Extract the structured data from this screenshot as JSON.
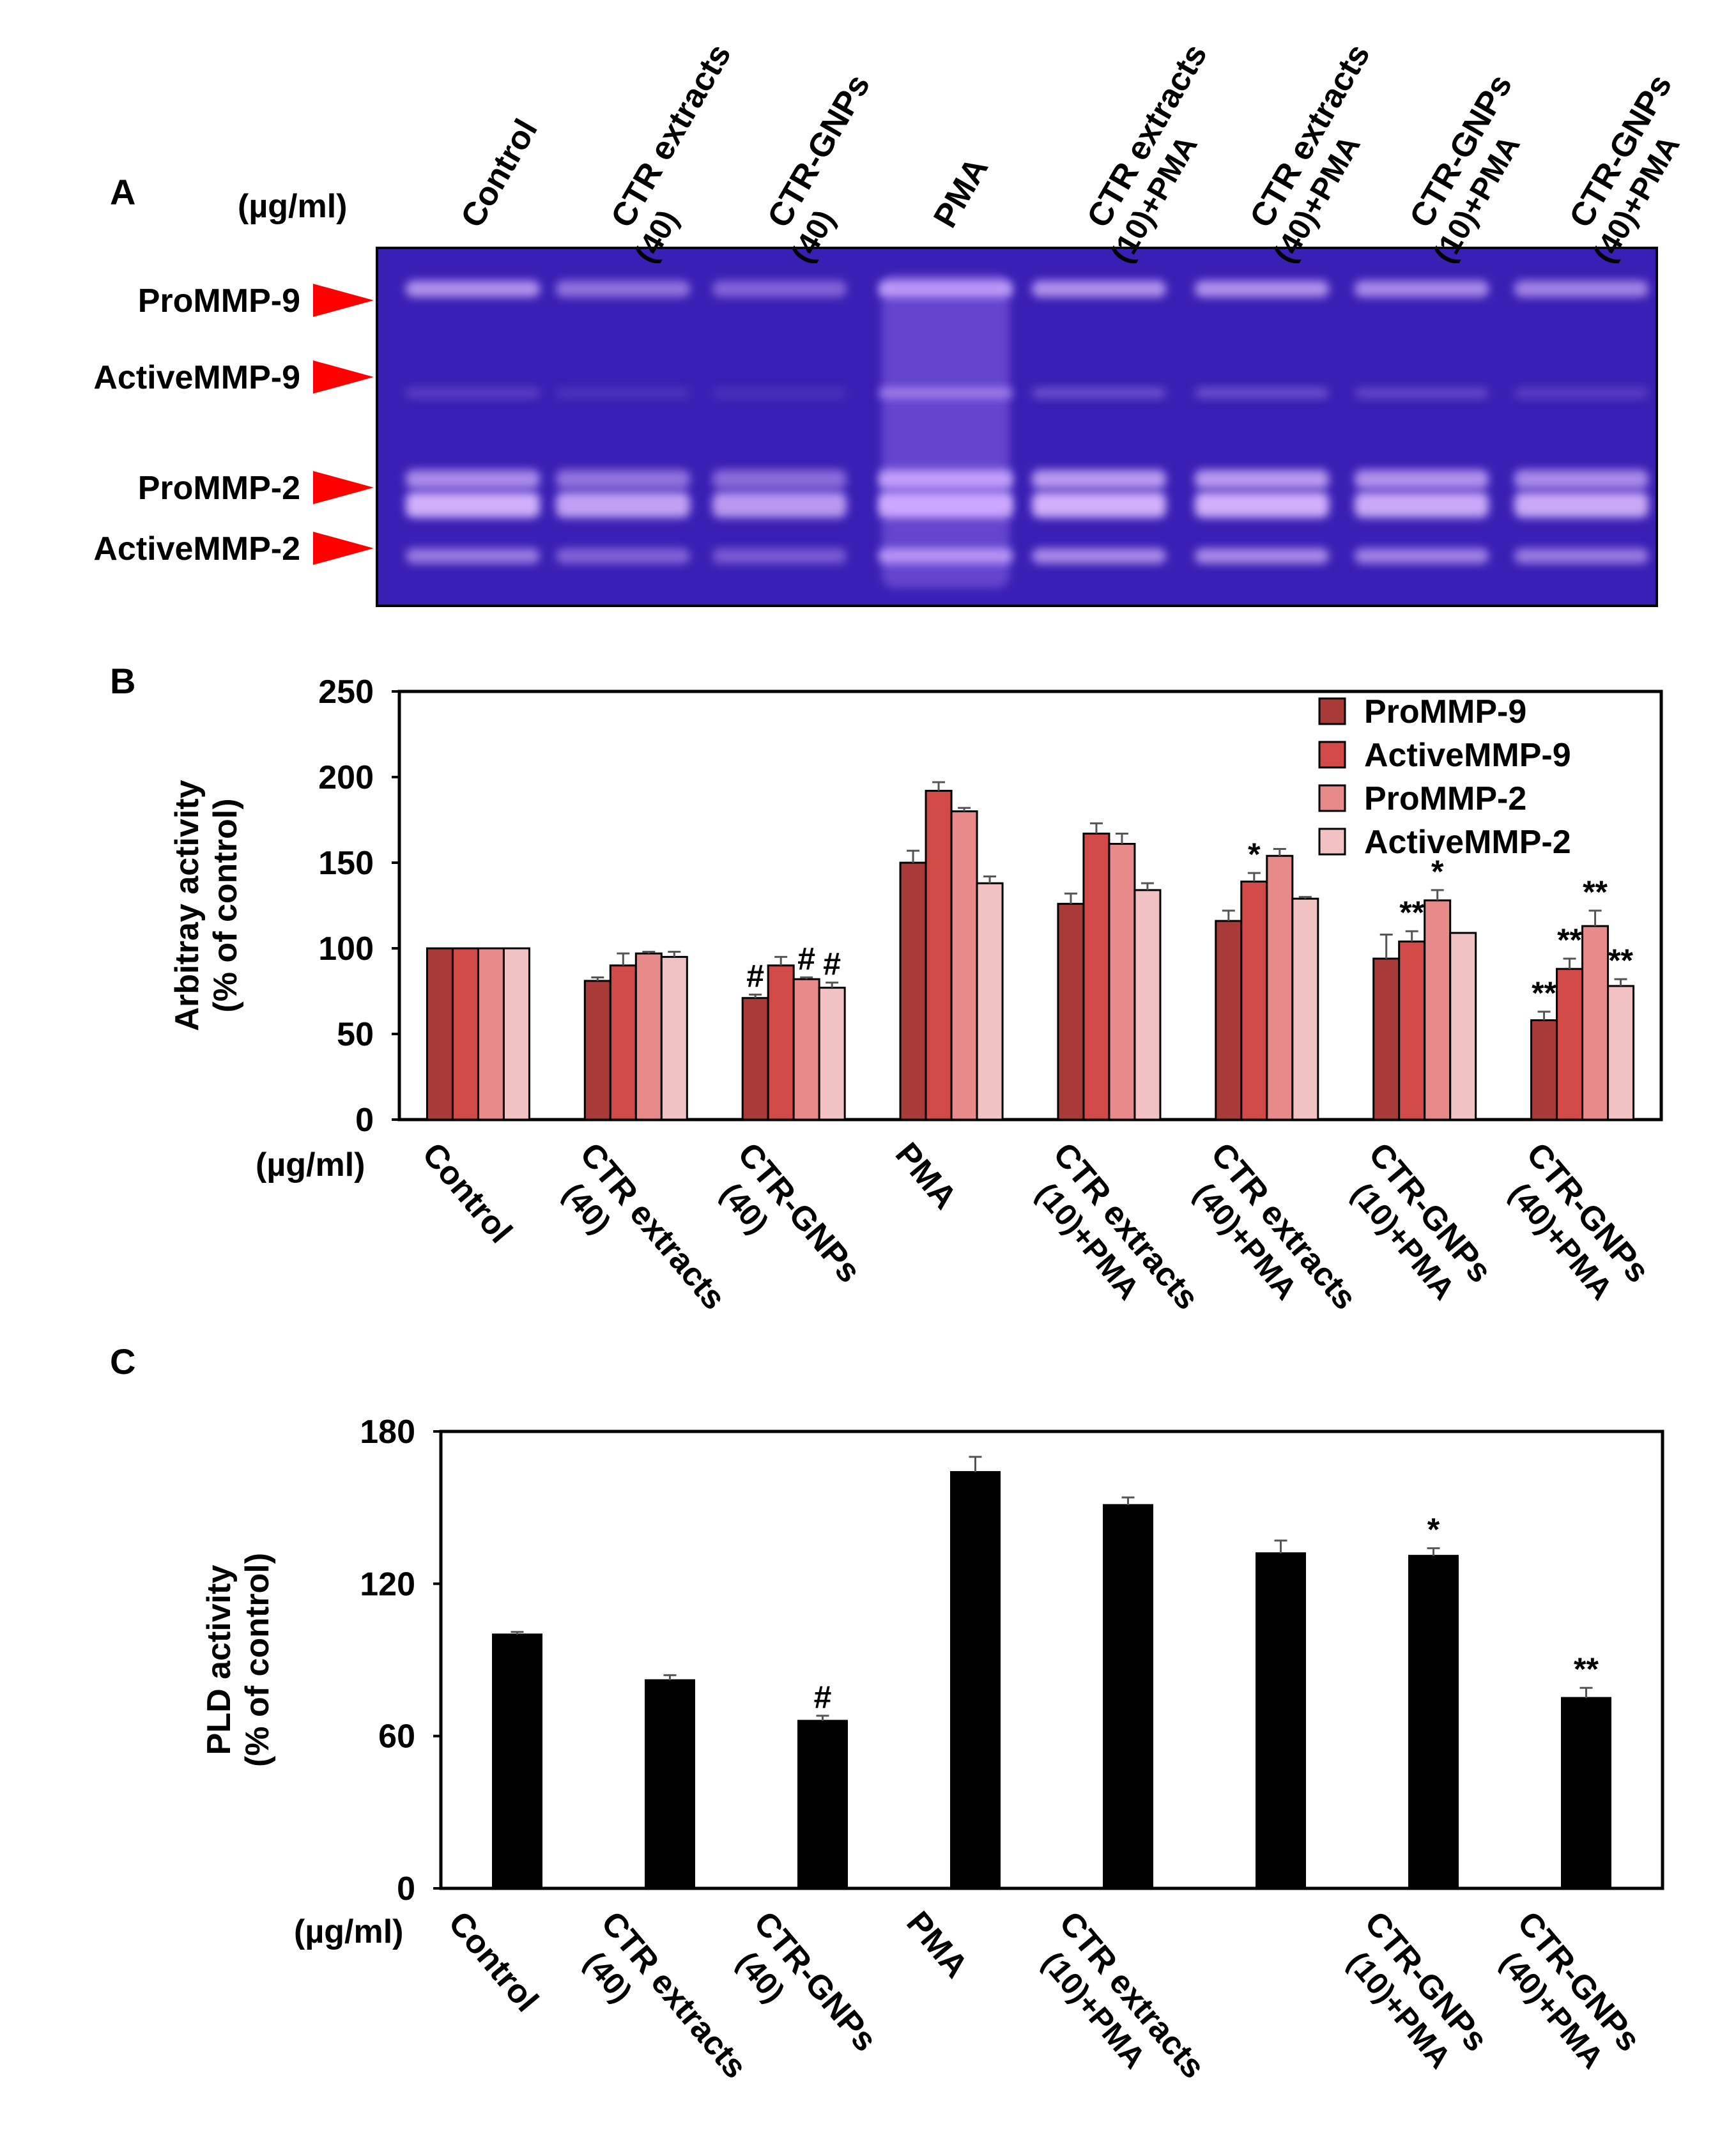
{
  "panels": {
    "a": {
      "label": "A",
      "unit_label": "(µg/ml)",
      "gel_color": "#3a1fb4",
      "band_markers": [
        "ProMMP-9",
        "ActiveMMP-9",
        "ProMMP-2",
        "ActiveMMP-2"
      ],
      "lanes": [
        {
          "line1": "Control",
          "line2": ""
        },
        {
          "line1": "CTR extracts",
          "line2": "(40)"
        },
        {
          "line1": "CTR-GNPs",
          "line2": "(40)"
        },
        {
          "line1": "PMA",
          "line2": ""
        },
        {
          "line1": "CTR extracts",
          "line2": "(10)+PMA"
        },
        {
          "line1": "CTR extracts",
          "line2": "(40)+PMA"
        },
        {
          "line1": "CTR-GNPs",
          "line2": "(10)+PMA"
        },
        {
          "line1": "CTR-GNPs",
          "line2": "(40)+PMA"
        }
      ],
      "marker_color": "#ff0000"
    },
    "b": {
      "label": "B",
      "unit_label": "(µg/ml)"
    },
    "c": {
      "label": "C",
      "unit_label": "(µg/ml)"
    }
  },
  "chart_data": [
    {
      "type": "bar",
      "panel": "B",
      "ylabel": [
        "Arbitray activity",
        "(% of control)"
      ],
      "ylim": [
        0,
        250
      ],
      "yticks": [
        0,
        50,
        100,
        150,
        200,
        250
      ],
      "categories": [
        {
          "line1": "Control",
          "line2": ""
        },
        {
          "line1": "CTR extracts",
          "line2": "(40)"
        },
        {
          "line1": "CTR-GNPs",
          "line2": "(40)"
        },
        {
          "line1": "PMA",
          "line2": ""
        },
        {
          "line1": "CTR extracts",
          "line2": "(10)+PMA"
        },
        {
          "line1": "CTR extracts",
          "line2": "(40)+PMA"
        },
        {
          "line1": "CTR-GNPs",
          "line2": "(10)+PMA"
        },
        {
          "line1": "CTR-GNPs",
          "line2": "(40)+PMA"
        }
      ],
      "legend_position": "top-right",
      "series": [
        {
          "name": "ProMMP-9",
          "color": "#a83a38",
          "values": [
            100,
            81,
            71,
            150,
            126,
            116,
            94,
            58
          ],
          "errors": [
            0,
            2,
            2,
            7,
            6,
            6,
            14,
            5
          ],
          "annotations": [
            "",
            "",
            "#",
            "",
            "",
            "",
            "",
            "**"
          ]
        },
        {
          "name": "ActiveMMP-9",
          "color": "#d24a47",
          "values": [
            100,
            90,
            90,
            192,
            167,
            139,
            104,
            88
          ],
          "errors": [
            0,
            7,
            5,
            5,
            6,
            5,
            6,
            6
          ],
          "annotations": [
            "",
            "",
            "",
            "",
            "",
            "*",
            "**",
            "**"
          ]
        },
        {
          "name": "ProMMP-2",
          "color": "#e98a8a",
          "values": [
            100,
            97,
            82,
            180,
            161,
            154,
            128,
            113
          ],
          "errors": [
            0,
            1,
            1,
            2,
            6,
            4,
            6,
            9
          ],
          "annotations": [
            "",
            "",
            "#",
            "",
            "",
            "",
            "*",
            "**"
          ]
        },
        {
          "name": "ActiveMMP-2",
          "color": "#f2c2c2",
          "values": [
            100,
            95,
            77,
            138,
            134,
            129,
            109,
            78
          ],
          "errors": [
            0,
            3,
            3,
            4,
            4,
            1,
            0,
            4
          ],
          "annotations": [
            "",
            "",
            "#",
            "",
            "",
            "",
            "",
            "**"
          ]
        }
      ]
    },
    {
      "type": "bar",
      "panel": "C",
      "ylabel": [
        "PLD activity",
        "(% of control)"
      ],
      "ylim": [
        0,
        180
      ],
      "yticks": [
        0,
        60,
        120,
        180
      ],
      "categories": [
        {
          "line1": "Control",
          "line2": ""
        },
        {
          "line1": "CTR extracts",
          "line2": "(40)"
        },
        {
          "line1": "CTR-GNPs",
          "line2": "(40)"
        },
        {
          "line1": "PMA",
          "line2": ""
        },
        {
          "line1": "CTR extracts",
          "line2": "(10)+PMA"
        },
        {
          "line1": "",
          "line2": ""
        },
        {
          "line1": "CTR-GNPs",
          "line2": "(10)+PMA"
        },
        {
          "line1": "CTR-GNPs",
          "line2": "(40)+PMA"
        }
      ],
      "series": [
        {
          "color": "#000000",
          "values": [
            100,
            82,
            66,
            164,
            151,
            132,
            131,
            75
          ],
          "errors": [
            1,
            2,
            2,
            6,
            3,
            5,
            3,
            4
          ],
          "annotations": [
            "",
            "",
            "#",
            "",
            "",
            "",
            "*",
            "**"
          ]
        }
      ]
    }
  ]
}
